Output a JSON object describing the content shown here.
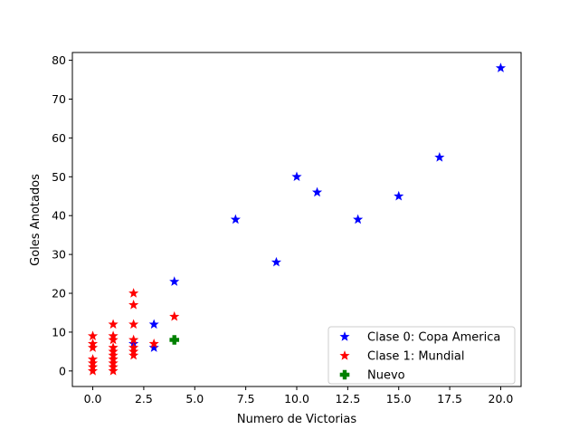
{
  "chart_data": {
    "type": "scatter",
    "title": "",
    "xlabel": "Numero de Victorias",
    "ylabel": "Goles Anotados",
    "xlim": [
      -1,
      21
    ],
    "ylim": [
      -4,
      82
    ],
    "xticks": [
      0,
      2.5,
      5,
      7.5,
      10,
      12.5,
      15,
      17.5,
      20
    ],
    "xtick_labels": [
      "0.0",
      "2.5",
      "5.0",
      "7.5",
      "10.0",
      "12.5",
      "15.0",
      "17.5",
      "20.0"
    ],
    "yticks": [
      0,
      10,
      20,
      30,
      40,
      50,
      60,
      70,
      80
    ],
    "ytick_labels": [
      "0",
      "10",
      "20",
      "30",
      "40",
      "50",
      "60",
      "70",
      "80"
    ],
    "grid": false,
    "legend_position": "bottom-right",
    "series": [
      {
        "name": "Clase 0: Copa America",
        "marker": "star",
        "color": "#0000ff",
        "points": [
          [
            20,
            78
          ],
          [
            17,
            55
          ],
          [
            10,
            50
          ],
          [
            11,
            46
          ],
          [
            15,
            45
          ],
          [
            7,
            39
          ],
          [
            13,
            39
          ],
          [
            9,
            28
          ],
          [
            4,
            23
          ],
          [
            3,
            12
          ],
          [
            3,
            6
          ],
          [
            2,
            7
          ]
        ]
      },
      {
        "name": "Clase 1: Mundial",
        "marker": "star",
        "color": "#ff0000",
        "points": [
          [
            0,
            9
          ],
          [
            0,
            7
          ],
          [
            0,
            6
          ],
          [
            0,
            3
          ],
          [
            0,
            2
          ],
          [
            0,
            1
          ],
          [
            0,
            0
          ],
          [
            1,
            12
          ],
          [
            1,
            9
          ],
          [
            1,
            8
          ],
          [
            1,
            6
          ],
          [
            1,
            5
          ],
          [
            1,
            4
          ],
          [
            1,
            3
          ],
          [
            1,
            2
          ],
          [
            1,
            1
          ],
          [
            1,
            0
          ],
          [
            2,
            20
          ],
          [
            2,
            17
          ],
          [
            2,
            12
          ],
          [
            2,
            8
          ],
          [
            2,
            6
          ],
          [
            2,
            5
          ],
          [
            2,
            4
          ],
          [
            3,
            7
          ],
          [
            4,
            14
          ]
        ]
      },
      {
        "name": "Nuevo",
        "marker": "plus",
        "color": "#008000",
        "points": [
          [
            4,
            8
          ]
        ]
      }
    ]
  }
}
